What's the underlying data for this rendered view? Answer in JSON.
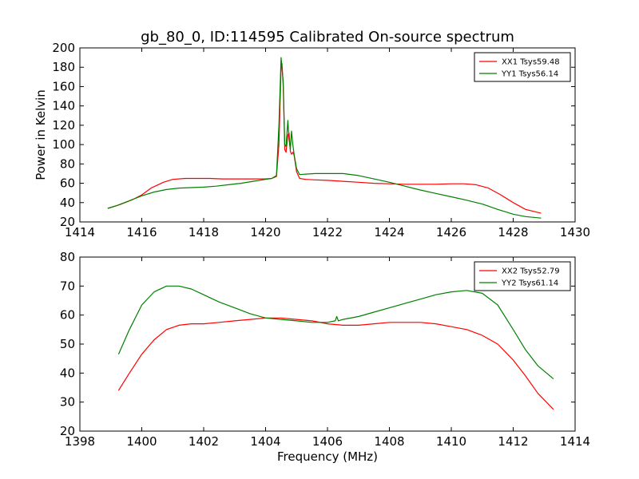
{
  "chart_data": [
    {
      "type": "line",
      "title": "gb_80_0, ID:114595 Calibrated On-source spectrum",
      "xlabel": "",
      "ylabel": "Power in Kelvin",
      "xlim": [
        1414,
        1430
      ],
      "ylim": [
        20,
        200
      ],
      "xticks": [
        "1414",
        "1416",
        "1418",
        "1420",
        "1422",
        "1424",
        "1426",
        "1428",
        "1430"
      ],
      "yticks": [
        "20",
        "40",
        "60",
        "80",
        "100",
        "120",
        "140",
        "160",
        "180",
        "200"
      ],
      "legend_position": "top-right",
      "series": [
        {
          "name": "XX1 Tsys59.48",
          "color": "#ff0000",
          "x": [
            1414.9,
            1415.3,
            1415.7,
            1416.0,
            1416.3,
            1416.7,
            1417.0,
            1417.4,
            1417.8,
            1418.2,
            1418.6,
            1419.0,
            1419.4,
            1419.8,
            1420.0,
            1420.2,
            1420.35,
            1420.43,
            1420.5,
            1420.53,
            1420.57,
            1420.62,
            1420.66,
            1420.72,
            1420.76,
            1420.8,
            1420.84,
            1420.88,
            1420.92,
            1421.0,
            1421.1,
            1421.3,
            1421.6,
            1422.0,
            1422.5,
            1423.0,
            1423.5,
            1424.0,
            1424.5,
            1425.0,
            1425.5,
            1426.0,
            1426.4,
            1426.8,
            1427.2,
            1427.6,
            1428.0,
            1428.4,
            1428.9
          ],
          "y": [
            34,
            38,
            43,
            48,
            55,
            61,
            64,
            65,
            65,
            65,
            64.5,
            64.5,
            64.5,
            64.5,
            64.5,
            65,
            67,
            100,
            180,
            184,
            160,
            95,
            92,
            110,
            112,
            93,
            90,
            92,
            89,
            72,
            65,
            64,
            63.5,
            63,
            62,
            61,
            60,
            59.5,
            59,
            59,
            59,
            59.5,
            59.5,
            58.5,
            55,
            48,
            40,
            33,
            29
          ]
        },
        {
          "name": "YY1 Tsys56.14",
          "color": "#008000",
          "x": [
            1414.9,
            1415.2,
            1415.6,
            1416.0,
            1416.4,
            1416.8,
            1417.2,
            1417.6,
            1418.0,
            1418.4,
            1418.8,
            1419.2,
            1419.6,
            1420.0,
            1420.2,
            1420.35,
            1420.43,
            1420.5,
            1420.53,
            1420.57,
            1420.62,
            1420.66,
            1420.72,
            1420.76,
            1420.8,
            1420.84,
            1420.88,
            1420.92,
            1421.0,
            1421.1,
            1421.3,
            1421.6,
            1422.0,
            1422.5,
            1423.0,
            1423.5,
            1424.0,
            1424.5,
            1425.0,
            1425.5,
            1426.0,
            1426.5,
            1427.0,
            1427.5,
            1428.0,
            1428.4,
            1428.9
          ],
          "y": [
            34,
            37,
            42,
            47,
            51,
            53.5,
            55,
            55.5,
            56,
            57,
            58.5,
            60,
            62,
            64,
            65,
            68,
            120,
            190,
            180,
            165,
            100,
            98,
            125,
            105,
            95,
            114,
            100,
            90,
            75,
            69,
            69.5,
            70,
            70,
            70,
            68,
            64.5,
            61,
            57,
            53,
            49.5,
            46,
            42.5,
            38.5,
            33,
            28,
            25.5,
            24
          ]
        }
      ]
    },
    {
      "type": "line",
      "title": "",
      "xlabel": "Frequency (MHz)",
      "ylabel": "",
      "xlim": [
        1398,
        1414
      ],
      "ylim": [
        20,
        80
      ],
      "xticks": [
        "1398",
        "1400",
        "1402",
        "1404",
        "1406",
        "1408",
        "1410",
        "1412",
        "1414"
      ],
      "yticks": [
        "20",
        "30",
        "40",
        "50",
        "60",
        "70",
        "80"
      ],
      "legend_position": "top-right",
      "series": [
        {
          "name": "XX2 Tsys52.79",
          "color": "#ff0000",
          "x": [
            1399.25,
            1399.6,
            1400.0,
            1400.4,
            1400.8,
            1401.2,
            1401.6,
            1402.0,
            1402.5,
            1403.0,
            1403.5,
            1404.0,
            1404.5,
            1405.0,
            1405.5,
            1406.0,
            1406.5,
            1407.0,
            1407.5,
            1408.0,
            1408.5,
            1409.0,
            1409.5,
            1410.0,
            1410.5,
            1411.0,
            1411.5,
            1412.0,
            1412.4,
            1412.8,
            1413.3
          ],
          "y": [
            34,
            40,
            46.5,
            51.5,
            55,
            56.5,
            57,
            57,
            57.5,
            58,
            58.5,
            59,
            59,
            58.5,
            58,
            57,
            56.5,
            56.5,
            57,
            57.5,
            57.5,
            57.5,
            57,
            56,
            55,
            53,
            50,
            44.5,
            39,
            33,
            27.5
          ]
        },
        {
          "name": "YY2 Tsys61.14",
          "color": "#008000",
          "x": [
            1399.25,
            1399.6,
            1400.0,
            1400.4,
            1400.8,
            1401.2,
            1401.6,
            1402.0,
            1402.5,
            1403.0,
            1403.5,
            1404.0,
            1404.5,
            1405.0,
            1405.5,
            1406.0,
            1406.25,
            1406.3,
            1406.35,
            1406.5,
            1407.0,
            1407.5,
            1408.0,
            1408.5,
            1409.0,
            1409.5,
            1410.0,
            1410.5,
            1411.0,
            1411.5,
            1412.0,
            1412.4,
            1412.8,
            1413.3
          ],
          "y": [
            46.5,
            55,
            63.5,
            68,
            70,
            70,
            69,
            67,
            64.5,
            62.5,
            60.5,
            59,
            58.5,
            58,
            57.5,
            57.5,
            58,
            59.5,
            58,
            58.5,
            59.5,
            61,
            62.5,
            64,
            65.5,
            67,
            68,
            68.5,
            67.5,
            63.5,
            55,
            48,
            42.5,
            38
          ]
        }
      ]
    }
  ]
}
